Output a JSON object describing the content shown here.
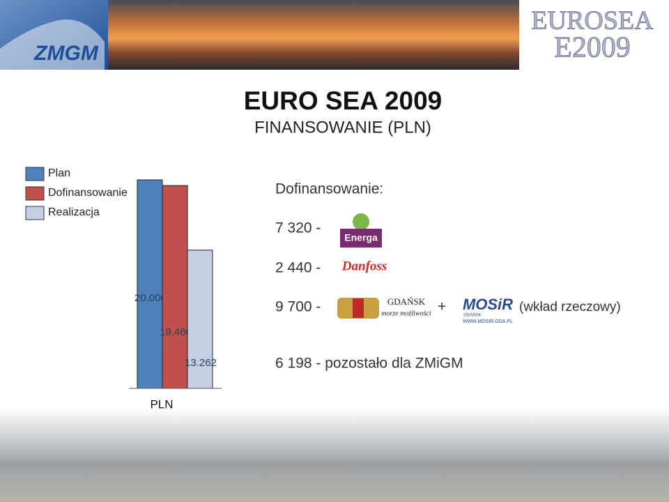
{
  "header": {
    "left_logo": "ZMGM",
    "right_logo_top": "EUROSEA",
    "right_logo_bottom": "E2009"
  },
  "title": "EURO SEA 2009",
  "subtitle": "FINANSOWANIE (PLN)",
  "chart_data": {
    "type": "bar",
    "categories": [
      "Plan",
      "Dofinansowanie",
      "Realizacja"
    ],
    "values": [
      20000,
      19460,
      13262
    ],
    "value_labels": [
      "20.000",
      "19.460",
      "13.262"
    ],
    "colors": [
      "#4f81bd",
      "#c0504d",
      "#c5cfe3"
    ],
    "x_label": "PLN"
  },
  "funding": {
    "heading": "Dofinansowanie:",
    "rows": [
      "7 320 -",
      "2 440 -",
      "9 700 -"
    ],
    "plus": "+",
    "in_kind": "(wkład rzeczowy)",
    "remaining": "6 198 - pozostało dla ZMiGM"
  },
  "logos": {
    "energa": "Energa",
    "danfoss": "Danfoss",
    "gdansk": "GDAŃSK",
    "gdansk_motto": "morze możliwości",
    "mosir": "MOSiR",
    "mosir_city": "GDAŃSK",
    "mosir_url": "WWW.MOSIR.GDA.PL"
  }
}
